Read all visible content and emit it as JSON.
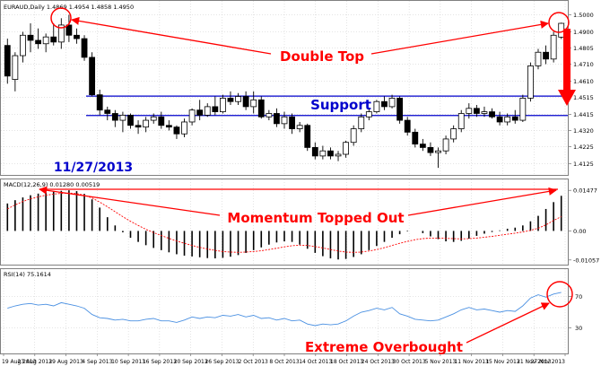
{
  "symbol_line": "EURAUD,Daily  1.4869 1.4954 1.4858 1.4950",
  "date_label": "11/27/2013",
  "annotations": {
    "double_top": "Double Top",
    "support": "Support",
    "momentum": "Momentum Topped Out",
    "overbought": "Extreme Overbought"
  },
  "colors": {
    "grid": "#c8c8c8",
    "axis": "#808080",
    "candle": "#000000",
    "annotation": "#ff0000",
    "support_line": "#0000cc",
    "label_blue": "#0000cc",
    "signal": "#ff0000",
    "rsi": "#4a90e2"
  },
  "chart_data": [
    {
      "type": "candlestick",
      "title": "EURAUD,Daily  1.4869 1.4954 1.4858 1.4950",
      "y_ticks": [
        "1.5000",
        "1.4900",
        "1.4805",
        "1.4710",
        "1.4610",
        "1.4515",
        "1.4415",
        "1.4320",
        "1.4225",
        "1.4125"
      ],
      "ylim": [
        1.4085,
        1.5045
      ],
      "support_lines": [
        1.4522,
        1.4408
      ],
      "candles": [
        {
          "o": 1.482,
          "h": 1.486,
          "l": 1.4595,
          "c": 1.464
        },
        {
          "o": 1.462,
          "h": 1.478,
          "l": 1.455,
          "c": 1.476
        },
        {
          "o": 1.476,
          "h": 1.49,
          "l": 1.472,
          "c": 1.488
        },
        {
          "o": 1.488,
          "h": 1.495,
          "l": 1.478,
          "c": 1.485
        },
        {
          "o": 1.485,
          "h": 1.492,
          "l": 1.48,
          "c": 1.483
        },
        {
          "o": 1.483,
          "h": 1.489,
          "l": 1.478,
          "c": 1.487
        },
        {
          "o": 1.487,
          "h": 1.495,
          "l": 1.482,
          "c": 1.484
        },
        {
          "o": 1.484,
          "h": 1.498,
          "l": 1.48,
          "c": 1.494
        },
        {
          "o": 1.494,
          "h": 1.5,
          "l": 1.484,
          "c": 1.488
        },
        {
          "o": 1.488,
          "h": 1.492,
          "l": 1.483,
          "c": 1.486
        },
        {
          "o": 1.486,
          "h": 1.488,
          "l": 1.473,
          "c": 1.475
        },
        {
          "o": 1.475,
          "h": 1.478,
          "l": 1.452,
          "c": 1.453
        },
        {
          "o": 1.453,
          "h": 1.456,
          "l": 1.441,
          "c": 1.444
        },
        {
          "o": 1.444,
          "h": 1.446,
          "l": 1.438,
          "c": 1.442
        },
        {
          "o": 1.442,
          "h": 1.444,
          "l": 1.434,
          "c": 1.438
        },
        {
          "o": 1.438,
          "h": 1.443,
          "l": 1.431,
          "c": 1.441
        },
        {
          "o": 1.441,
          "h": 1.442,
          "l": 1.433,
          "c": 1.435
        },
        {
          "o": 1.435,
          "h": 1.438,
          "l": 1.43,
          "c": 1.434
        },
        {
          "o": 1.434,
          "h": 1.44,
          "l": 1.431,
          "c": 1.438
        },
        {
          "o": 1.438,
          "h": 1.442,
          "l": 1.436,
          "c": 1.44
        },
        {
          "o": 1.44,
          "h": 1.443,
          "l": 1.433,
          "c": 1.435
        },
        {
          "o": 1.435,
          "h": 1.438,
          "l": 1.432,
          "c": 1.434
        },
        {
          "o": 1.434,
          "h": 1.435,
          "l": 1.427,
          "c": 1.43
        },
        {
          "o": 1.43,
          "h": 1.439,
          "l": 1.428,
          "c": 1.437
        },
        {
          "o": 1.437,
          "h": 1.445,
          "l": 1.435,
          "c": 1.444
        },
        {
          "o": 1.444,
          "h": 1.45,
          "l": 1.438,
          "c": 1.441
        },
        {
          "o": 1.441,
          "h": 1.448,
          "l": 1.44,
          "c": 1.446
        },
        {
          "o": 1.446,
          "h": 1.452,
          "l": 1.441,
          "c": 1.443
        },
        {
          "o": 1.443,
          "h": 1.453,
          "l": 1.442,
          "c": 1.451
        },
        {
          "o": 1.451,
          "h": 1.455,
          "l": 1.447,
          "c": 1.449
        },
        {
          "o": 1.449,
          "h": 1.454,
          "l": 1.447,
          "c": 1.452
        },
        {
          "o": 1.452,
          "h": 1.455,
          "l": 1.444,
          "c": 1.446
        },
        {
          "o": 1.446,
          "h": 1.455,
          "l": 1.442,
          "c": 1.45
        },
        {
          "o": 1.45,
          "h": 1.452,
          "l": 1.439,
          "c": 1.44
        },
        {
          "o": 1.44,
          "h": 1.444,
          "l": 1.438,
          "c": 1.442
        },
        {
          "o": 1.442,
          "h": 1.445,
          "l": 1.434,
          "c": 1.436
        },
        {
          "o": 1.436,
          "h": 1.443,
          "l": 1.433,
          "c": 1.44
        },
        {
          "o": 1.44,
          "h": 1.442,
          "l": 1.43,
          "c": 1.433
        },
        {
          "o": 1.433,
          "h": 1.437,
          "l": 1.431,
          "c": 1.435
        },
        {
          "o": 1.435,
          "h": 1.436,
          "l": 1.42,
          "c": 1.422
        },
        {
          "o": 1.422,
          "h": 1.425,
          "l": 1.415,
          "c": 1.417
        },
        {
          "o": 1.417,
          "h": 1.423,
          "l": 1.415,
          "c": 1.42
        },
        {
          "o": 1.42,
          "h": 1.422,
          "l": 1.415,
          "c": 1.417
        },
        {
          "o": 1.417,
          "h": 1.42,
          "l": 1.414,
          "c": 1.418
        },
        {
          "o": 1.418,
          "h": 1.426,
          "l": 1.416,
          "c": 1.425
        },
        {
          "o": 1.425,
          "h": 1.435,
          "l": 1.423,
          "c": 1.433
        },
        {
          "o": 1.433,
          "h": 1.442,
          "l": 1.431,
          "c": 1.44
        },
        {
          "o": 1.44,
          "h": 1.445,
          "l": 1.438,
          "c": 1.443
        },
        {
          "o": 1.443,
          "h": 1.45,
          "l": 1.442,
          "c": 1.449
        },
        {
          "o": 1.449,
          "h": 1.452,
          "l": 1.444,
          "c": 1.446
        },
        {
          "o": 1.446,
          "h": 1.453,
          "l": 1.445,
          "c": 1.451
        },
        {
          "o": 1.451,
          "h": 1.452,
          "l": 1.436,
          "c": 1.438
        },
        {
          "o": 1.438,
          "h": 1.44,
          "l": 1.429,
          "c": 1.431
        },
        {
          "o": 1.431,
          "h": 1.433,
          "l": 1.422,
          "c": 1.424
        },
        {
          "o": 1.424,
          "h": 1.427,
          "l": 1.42,
          "c": 1.422
        },
        {
          "o": 1.422,
          "h": 1.425,
          "l": 1.417,
          "c": 1.419
        },
        {
          "o": 1.419,
          "h": 1.422,
          "l": 1.41,
          "c": 1.42
        },
        {
          "o": 1.42,
          "h": 1.429,
          "l": 1.418,
          "c": 1.427
        },
        {
          "o": 1.427,
          "h": 1.435,
          "l": 1.425,
          "c": 1.433
        },
        {
          "o": 1.433,
          "h": 1.444,
          "l": 1.431,
          "c": 1.442
        },
        {
          "o": 1.442,
          "h": 1.448,
          "l": 1.439,
          "c": 1.445
        },
        {
          "o": 1.445,
          "h": 1.447,
          "l": 1.44,
          "c": 1.442
        },
        {
          "o": 1.442,
          "h": 1.446,
          "l": 1.44,
          "c": 1.443
        },
        {
          "o": 1.443,
          "h": 1.445,
          "l": 1.439,
          "c": 1.44
        },
        {
          "o": 1.44,
          "h": 1.443,
          "l": 1.435,
          "c": 1.437
        },
        {
          "o": 1.437,
          "h": 1.442,
          "l": 1.435,
          "c": 1.44
        },
        {
          "o": 1.44,
          "h": 1.444,
          "l": 1.436,
          "c": 1.438
        },
        {
          "o": 1.438,
          "h": 1.453,
          "l": 1.437,
          "c": 1.451
        },
        {
          "o": 1.451,
          "h": 1.472,
          "l": 1.449,
          "c": 1.47
        },
        {
          "o": 1.47,
          "h": 1.48,
          "l": 1.468,
          "c": 1.478
        },
        {
          "o": 1.478,
          "h": 1.482,
          "l": 1.471,
          "c": 1.474
        },
        {
          "o": 1.474,
          "h": 1.49,
          "l": 1.472,
          "c": 1.488
        },
        {
          "o": 1.4869,
          "h": 1.4954,
          "l": 1.4858,
          "c": 1.495
        }
      ]
    },
    {
      "type": "bar",
      "title": "MACD(12,26,9) 0.01280 0.00519",
      "y_ticks": [
        "0.01477",
        "0.00",
        "-0.01057"
      ],
      "ylim": [
        -0.0113,
        0.0155
      ],
      "zero": 0,
      "histogram": [
        0.01,
        0.0112,
        0.0122,
        0.013,
        0.0136,
        0.014,
        0.0143,
        0.0146,
        0.0148,
        0.0145,
        0.0135,
        0.0115,
        0.0085,
        0.005,
        0.002,
        -0.0005,
        -0.0025,
        -0.004,
        -0.0052,
        -0.0062,
        -0.007,
        -0.0078,
        -0.0085,
        -0.009,
        -0.0093,
        -0.0096,
        -0.0099,
        -0.01,
        -0.0098,
        -0.0094,
        -0.0088,
        -0.008,
        -0.007,
        -0.006,
        -0.005,
        -0.0042,
        -0.0038,
        -0.004,
        -0.005,
        -0.0065,
        -0.008,
        -0.0092,
        -0.01,
        -0.0104,
        -0.0102,
        -0.0095,
        -0.0085,
        -0.007,
        -0.0055,
        -0.004,
        -0.0025,
        -0.0012,
        -0.0002,
        0.0,
        -0.0008,
        -0.002,
        -0.003,
        -0.0038,
        -0.004,
        -0.0036,
        -0.0028,
        -0.0018,
        -0.001,
        -0.0004,
        0.0002,
        0.0008,
        0.0012,
        0.002,
        0.0035,
        0.0055,
        0.008,
        0.0105,
        0.0128
      ],
      "signal": [
        0.008,
        0.0095,
        0.0107,
        0.0117,
        0.0124,
        0.013,
        0.0134,
        0.0137,
        0.0138,
        0.0136,
        0.013,
        0.012,
        0.0105,
        0.0088,
        0.007,
        0.0052,
        0.0035,
        0.002,
        0.0006,
        -0.0006,
        -0.0017,
        -0.0027,
        -0.0037,
        -0.0045,
        -0.0053,
        -0.006,
        -0.0066,
        -0.0071,
        -0.0075,
        -0.0077,
        -0.0078,
        -0.0077,
        -0.0075,
        -0.0072,
        -0.0068,
        -0.0063,
        -0.0058,
        -0.0054,
        -0.0052,
        -0.0053,
        -0.0057,
        -0.0062,
        -0.0068,
        -0.0073,
        -0.0077,
        -0.0078,
        -0.0077,
        -0.0073,
        -0.0068,
        -0.0061,
        -0.0053,
        -0.0045,
        -0.0038,
        -0.0032,
        -0.0028,
        -0.0026,
        -0.0026,
        -0.0027,
        -0.0028,
        -0.0029,
        -0.0028,
        -0.0026,
        -0.0023,
        -0.002,
        -0.0016,
        -0.0012,
        -0.0008,
        -0.0004,
        0.0002,
        0.001,
        0.0022,
        0.0038,
        0.0052
      ]
    },
    {
      "type": "line",
      "title": "RSI(14) 75.1614",
      "y_ticks": [
        "70",
        "30"
      ],
      "ylim": [
        0,
        100
      ],
      "values": [
        55,
        58,
        60,
        61,
        59,
        60,
        58,
        62,
        60,
        58,
        55,
        47,
        43,
        42,
        40,
        41,
        39,
        39,
        41,
        42,
        39,
        39,
        37,
        40,
        44,
        42,
        44,
        43,
        46,
        45,
        47,
        44,
        46,
        42,
        43,
        40,
        42,
        39,
        40,
        35,
        33,
        35,
        34,
        35,
        39,
        45,
        50,
        52,
        55,
        53,
        56,
        48,
        45,
        41,
        40,
        39,
        40,
        44,
        48,
        53,
        56,
        53,
        54,
        52,
        50,
        52,
        51,
        58,
        68,
        72,
        69,
        73,
        75.16
      ]
    }
  ],
  "x_labels": [
    "19 Aug 2013",
    "23 Aug 2013",
    "29 Aug 2013",
    "4 Sep 2013",
    "10 Sep 2013",
    "16 Sep 2013",
    "20 Sep 2013",
    "26 Sep 2013",
    "2 Oct 2013",
    "8 Oct 2013",
    "14 Oct 2013",
    "18 Oct 2013",
    "24 Oct 2013",
    "30 Oct 2013",
    "5 Nov 2013",
    "11 Nov 2013",
    "15 Nov 2013",
    "21 Nov 2013",
    "27 Nov 2013"
  ]
}
